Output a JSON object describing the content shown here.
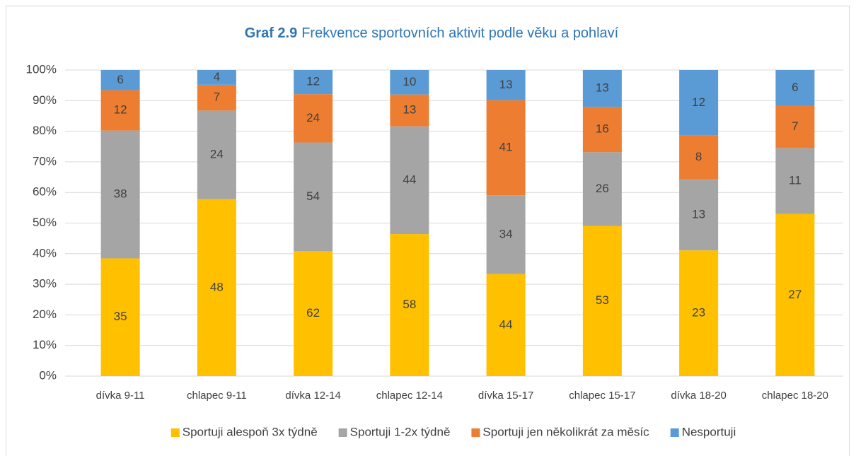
{
  "chart_data": {
    "type": "bar",
    "stacking": "percent",
    "title_label": "Graf 2.9",
    "title": "Frekvence sportovních aktivit podle věku a pohlaví",
    "categories": [
      "dívka 9-11",
      "chlapec 9-11",
      "dívka 12-14",
      "chlapec 12-14",
      "dívka 15-17",
      "chlapec 15-17",
      "dívka 18-20",
      "chlapec 18-20"
    ],
    "series": [
      {
        "name": "Sportuji alespoň 3x týdně",
        "color": "#FFC000",
        "values": [
          35,
          48,
          62,
          58,
          44,
          53,
          23,
          27
        ]
      },
      {
        "name": "Sportuji 1-2x týdně",
        "color": "#A5A5A5",
        "values": [
          38,
          24,
          54,
          44,
          34,
          26,
          13,
          11
        ]
      },
      {
        "name": "Sportuji jen několikrát za měsíc",
        "color": "#ED7D31",
        "values": [
          12,
          7,
          24,
          13,
          41,
          16,
          8,
          7
        ]
      },
      {
        "name": "Nesportuji",
        "color": "#5B9BD5",
        "values": [
          6,
          4,
          12,
          10,
          13,
          13,
          12,
          6
        ]
      }
    ],
    "ylim": [
      0,
      100
    ],
    "yticks": [
      {
        "value": 0,
        "label": "0%"
      },
      {
        "value": 10,
        "label": "10%"
      },
      {
        "value": 20,
        "label": "20%"
      },
      {
        "value": 30,
        "label": "30%"
      },
      {
        "value": 40,
        "label": "40%"
      },
      {
        "value": 50,
        "label": "50%"
      },
      {
        "value": 60,
        "label": "60%"
      },
      {
        "value": 70,
        "label": "70%"
      },
      {
        "value": 80,
        "label": "80%"
      },
      {
        "value": 90,
        "label": "90%"
      },
      {
        "value": 100,
        "label": "100%"
      }
    ],
    "grid": true,
    "legend": "bottom"
  }
}
